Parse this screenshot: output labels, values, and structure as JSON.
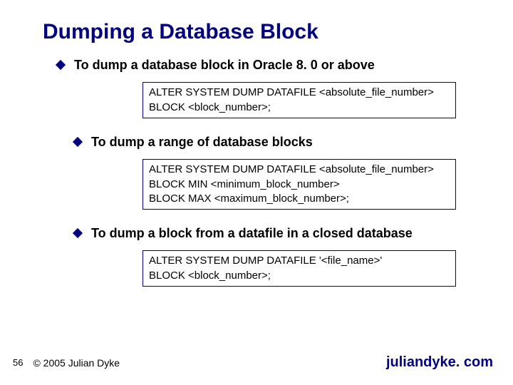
{
  "title": "Dumping a Database Block",
  "bullets": [
    {
      "text": "To dump a database block in Oracle 8. 0 or above",
      "indent": false,
      "code": "ALTER SYSTEM DUMP DATAFILE <absolute_file_number>\nBLOCK <block_number>;"
    },
    {
      "text": "To dump a range of database blocks",
      "indent": true,
      "code": "ALTER SYSTEM DUMP DATAFILE <absolute_file_number>\nBLOCK MIN <minimum_block_number>\nBLOCK MAX <maximum_block_number>;"
    },
    {
      "text": "To dump a block from a datafile in a closed database",
      "indent": true,
      "code": "ALTER SYSTEM DUMP DATAFILE '<file_name>'\nBLOCK <block_number>;"
    }
  ],
  "footer": {
    "page": "56",
    "copyright": "© 2005 Julian Dyke",
    "site": "juliandyke. com"
  },
  "colors": {
    "accent": "#000080",
    "text": "#000000",
    "background": "#ffffff"
  }
}
